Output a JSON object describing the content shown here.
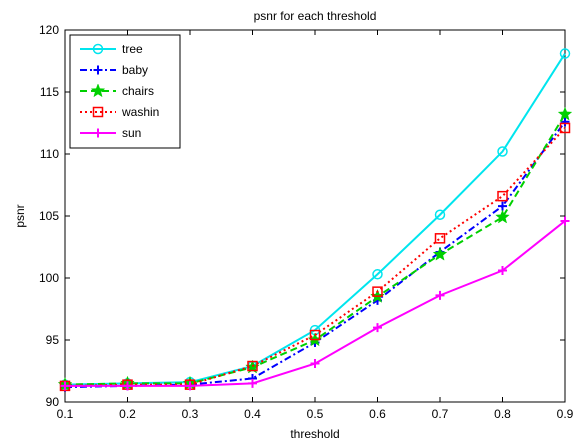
{
  "chart_data": {
    "type": "line",
    "title": "psnr for each threshold",
    "xlabel": "threshold",
    "ylabel": "psnr",
    "xlim": [
      0.1,
      0.9
    ],
    "ylim": [
      90,
      120
    ],
    "xticks": [
      0.1,
      0.2,
      0.3,
      0.4,
      0.5,
      0.6,
      0.7,
      0.8,
      0.9
    ],
    "xtick_labels": [
      "0.1",
      "0.2",
      "0.3",
      "0.4",
      "0.5",
      "0.6",
      "0.7",
      "0.8",
      "0.9"
    ],
    "yticks": [
      90,
      95,
      100,
      105,
      110,
      115,
      120
    ],
    "ytick_labels": [
      "90",
      "95",
      "100",
      "105",
      "110",
      "115",
      "120"
    ],
    "grid": false,
    "legend_position": "top-left",
    "x": [
      0.1,
      0.2,
      0.3,
      0.4,
      0.5,
      0.6,
      0.7,
      0.8,
      0.9
    ],
    "series": [
      {
        "name": "tree",
        "color": "#00e5ee",
        "dash": "solid",
        "marker": "circle",
        "values": [
          91.4,
          91.5,
          91.6,
          92.9,
          95.8,
          100.3,
          105.1,
          110.2,
          118.1
        ]
      },
      {
        "name": "baby",
        "color": "#0000ff",
        "dash": "dashdot",
        "marker": "plus",
        "values": [
          91.2,
          91.3,
          91.4,
          91.9,
          94.8,
          98.2,
          102.1,
          105.8,
          112.6
        ]
      },
      {
        "name": "chairs",
        "color": "#00d000",
        "dash": "dashed",
        "marker": "star",
        "values": [
          91.4,
          91.5,
          91.5,
          92.8,
          95.0,
          98.5,
          101.9,
          104.9,
          113.2
        ]
      },
      {
        "name": "washin",
        "color": "#ff0000",
        "dash": "dotted",
        "marker": "square",
        "values": [
          91.3,
          91.4,
          91.4,
          92.9,
          95.4,
          98.9,
          103.2,
          106.6,
          112.1
        ]
      },
      {
        "name": "sun",
        "color": "#ff00ff",
        "dash": "solid",
        "marker": "plus",
        "values": [
          91.3,
          91.3,
          91.3,
          91.5,
          93.1,
          96.0,
          98.6,
          100.6,
          104.6
        ]
      }
    ]
  }
}
